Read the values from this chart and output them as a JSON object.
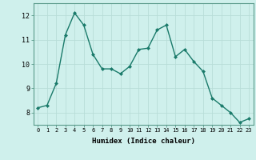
{
  "x": [
    0,
    1,
    2,
    3,
    4,
    5,
    6,
    7,
    8,
    9,
    10,
    11,
    12,
    13,
    14,
    15,
    16,
    17,
    18,
    19,
    20,
    21,
    22,
    23
  ],
  "y": [
    8.2,
    8.3,
    9.2,
    11.2,
    12.1,
    11.6,
    10.4,
    9.8,
    9.8,
    9.6,
    9.9,
    10.6,
    10.65,
    11.4,
    11.6,
    10.3,
    10.6,
    10.1,
    9.7,
    8.6,
    8.3,
    8.0,
    7.6,
    7.75
  ],
  "xlabel": "Humidex (Indice chaleur)",
  "ylim": [
    7.5,
    12.5
  ],
  "xlim": [
    -0.5,
    23.5
  ],
  "yticks": [
    8,
    9,
    10,
    11,
    12
  ],
  "xticks": [
    0,
    1,
    2,
    3,
    4,
    5,
    6,
    7,
    8,
    9,
    10,
    11,
    12,
    13,
    14,
    15,
    16,
    17,
    18,
    19,
    20,
    21,
    22,
    23
  ],
  "line_color": "#1a7a6a",
  "marker_color": "#1a7a6a",
  "bg_color": "#cff0ec",
  "grid_color": "#b8ddd8"
}
